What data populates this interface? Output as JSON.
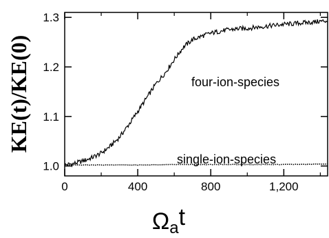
{
  "chart_data": {
    "type": "line",
    "title": "",
    "xlabel": "Ωat",
    "xlabel_parts": {
      "main": "Ω",
      "subscript": "a",
      "tail": "t"
    },
    "ylabel": "KE(t)/KE(0)",
    "xlim": [
      0,
      1440
    ],
    "ylim": [
      0.98,
      1.31
    ],
    "xticks": [
      0,
      400,
      800,
      1200
    ],
    "xtick_labels": [
      "0",
      "400",
      "800",
      "1,200"
    ],
    "xticks_minor": [
      200,
      600,
      1000,
      1400
    ],
    "yticks": [
      1.0,
      1.1,
      1.2,
      1.3
    ],
    "ytick_labels": [
      "1.0",
      "1.1",
      "1.2",
      "1.3"
    ],
    "grid": false,
    "annotations": [
      "four-ion-species",
      "single-ion-species"
    ],
    "series": [
      {
        "name": "four-ion-species",
        "style": "solid",
        "x": [
          0,
          50,
          100,
          150,
          200,
          250,
          300,
          350,
          400,
          450,
          500,
          550,
          600,
          650,
          700,
          750,
          800,
          850,
          900,
          950,
          1000,
          1050,
          1100,
          1150,
          1200,
          1250,
          1300,
          1350,
          1400,
          1440
        ],
        "y": [
          1.002,
          1.005,
          1.01,
          1.017,
          1.026,
          1.04,
          1.058,
          1.083,
          1.11,
          1.138,
          1.166,
          1.188,
          1.215,
          1.24,
          1.255,
          1.262,
          1.268,
          1.272,
          1.275,
          1.277,
          1.278,
          1.28,
          1.282,
          1.284,
          1.286,
          1.287,
          1.289,
          1.29,
          1.292,
          1.293
        ]
      },
      {
        "name": "single-ion-species",
        "style": "dotted",
        "x": [
          0,
          200,
          400,
          600,
          800,
          1000,
          1200,
          1440
        ],
        "y": [
          1.002,
          1.002,
          1.002,
          1.003,
          1.003,
          1.003,
          1.003,
          1.004
        ]
      }
    ],
    "colors": {
      "line": "#000000",
      "axes": "#000000",
      "background": "#ffffff"
    }
  }
}
